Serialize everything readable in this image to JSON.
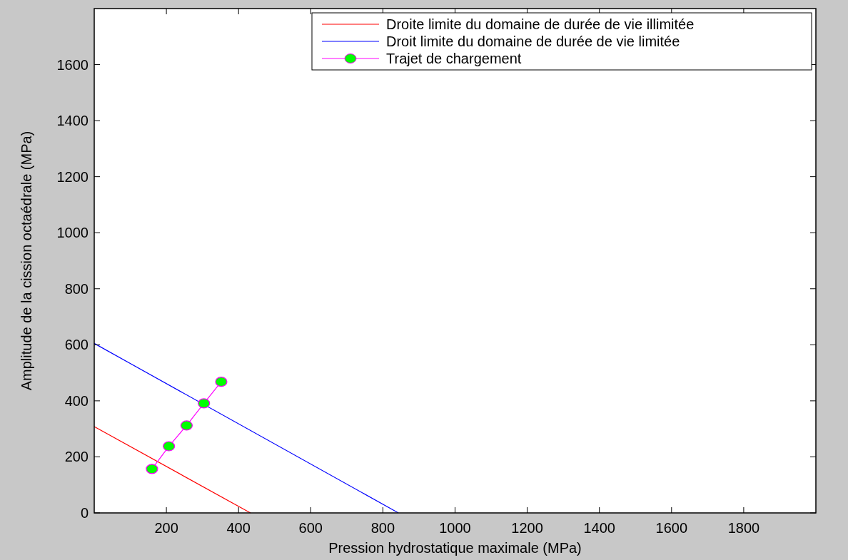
{
  "chart_data": {
    "type": "line",
    "xlabel": "Pression hydrostatique maximale (MPa)",
    "ylabel": "Amplitude de la cission octaédrale (MPa)",
    "xlim": [
      0,
      2000
    ],
    "xticks": [
      200,
      400,
      600,
      800,
      1000,
      1200,
      1400,
      1600,
      1800
    ],
    "ylim": [
      0,
      1800
    ],
    "yticks": [
      0,
      200,
      400,
      600,
      800,
      1000,
      1200,
      1400,
      1600
    ],
    "grid": false,
    "legend": "top right",
    "series": [
      {
        "name": "Droite limite du domaine de durée de vie illimitée",
        "color": "#ff0000",
        "x": [
          0,
          433
        ],
        "values": [
          308,
          0
        ],
        "marker": "none"
      },
      {
        "name": "Droit limite du domaine de durée de vie limitée",
        "color": "#0000ff",
        "x": [
          0,
          843
        ],
        "values": [
          605,
          0
        ],
        "marker": "none"
      },
      {
        "name": "Trajet de chargement",
        "color": "#ff00ff",
        "x": [
          160,
          207,
          256,
          304,
          352
        ],
        "values": [
          157,
          238,
          312,
          391,
          468
        ],
        "marker": "circle",
        "colors": [
          "#00ff00",
          "#00ff00",
          "#00ff00",
          "#00ff00",
          "#00ff00"
        ]
      }
    ]
  }
}
